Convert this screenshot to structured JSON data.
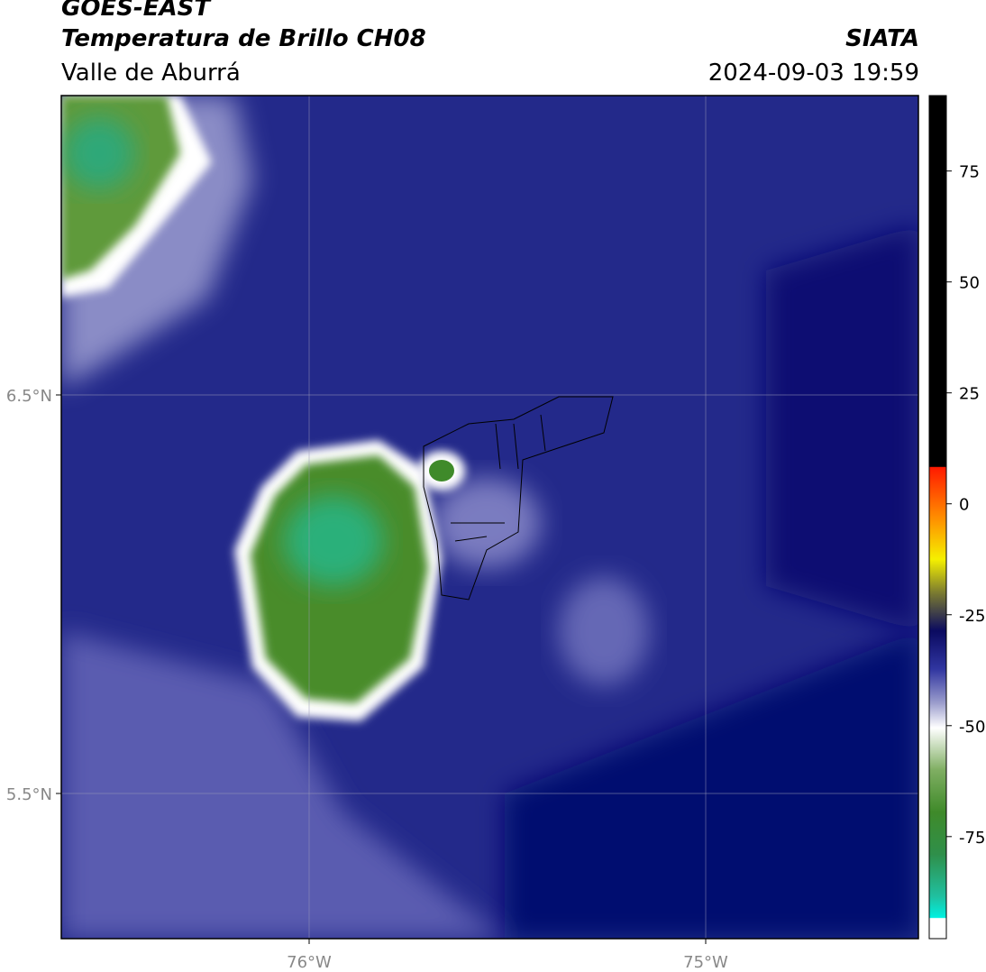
{
  "header": {
    "satellite": "GOES-EAST",
    "product": "Temperatura de Brillo CH08",
    "region": "Valle de Aburrá",
    "agency": "SIATA",
    "datetime": "2024-09-03 19:59"
  },
  "map": {
    "lat_labels": [
      "6.5°N",
      "5.5°N"
    ],
    "lon_labels": [
      "76°W",
      "75°W"
    ]
  },
  "colorbar": {
    "lim": [
      -98,
      92
    ],
    "ticks": [
      75,
      50,
      25,
      0,
      -25,
      -50,
      -75
    ]
  }
}
